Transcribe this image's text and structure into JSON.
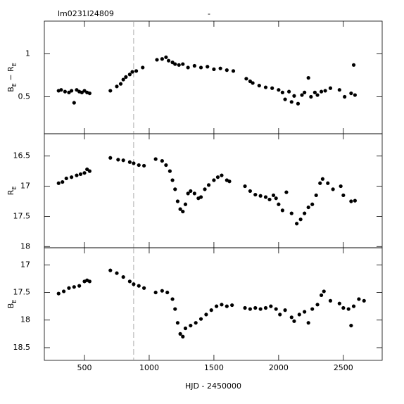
{
  "chart_data": [
    {
      "type": "scatter",
      "title": "lm0231l24809",
      "title_center": "-",
      "ylabel": [
        {
          "text": "B"
        },
        {
          "text": "E",
          "sub": true
        },
        {
          "text": " − R"
        },
        {
          "text": "E",
          "sub": true
        }
      ],
      "xlim": [
        190,
        2800
      ],
      "xticks": [
        500,
        1000,
        1500,
        2000,
        2500
      ],
      "ylim": [
        0.07,
        1.38
      ],
      "yticks": [
        0.5,
        1
      ],
      "inverted": false,
      "reference_x": 880,
      "color": "#000000",
      "x": [
        300,
        320,
        350,
        380,
        400,
        420,
        440,
        460,
        480,
        500,
        520,
        540,
        700,
        750,
        780,
        800,
        820,
        850,
        870,
        900,
        950,
        1060,
        1100,
        1130,
        1150,
        1180,
        1200,
        1230,
        1260,
        1300,
        1350,
        1400,
        1450,
        1500,
        1550,
        1600,
        1650,
        1750,
        1780,
        1800,
        1850,
        1900,
        1950,
        2000,
        2030,
        2050,
        2080,
        2100,
        2120,
        2150,
        2180,
        2200,
        2230,
        2250,
        2280,
        2300,
        2330,
        2360,
        2400,
        2470,
        2510,
        2560,
        2580,
        2590
      ],
      "values": [
        0.57,
        0.58,
        0.56,
        0.55,
        0.57,
        0.43,
        0.58,
        0.56,
        0.55,
        0.57,
        0.55,
        0.54,
        0.57,
        0.62,
        0.65,
        0.7,
        0.73,
        0.76,
        0.79,
        0.8,
        0.84,
        0.93,
        0.94,
        0.96,
        0.92,
        0.9,
        0.88,
        0.87,
        0.88,
        0.84,
        0.86,
        0.84,
        0.85,
        0.82,
        0.83,
        0.81,
        0.8,
        0.71,
        0.68,
        0.66,
        0.63,
        0.61,
        0.6,
        0.58,
        0.55,
        0.47,
        0.56,
        0.44,
        0.51,
        0.42,
        0.52,
        0.55,
        0.72,
        0.5,
        0.55,
        0.52,
        0.56,
        0.57,
        0.6,
        0.58,
        0.5,
        0.54,
        0.87,
        0.52
      ]
    },
    {
      "type": "scatter",
      "ylabel": [
        {
          "text": "R"
        },
        {
          "text": "E",
          "sub": true
        }
      ],
      "xlim": [
        190,
        2800
      ],
      "xticks": [
        500,
        1000,
        1500,
        2000,
        2500
      ],
      "ylim": [
        16.13,
        18.02
      ],
      "yticks": [
        16.5,
        17,
        17.5,
        18
      ],
      "inverted": true,
      "reference_x": 880,
      "color": "#000000",
      "x": [
        300,
        330,
        360,
        400,
        440,
        470,
        500,
        520,
        540,
        700,
        760,
        800,
        850,
        880,
        920,
        960,
        1050,
        1100,
        1130,
        1160,
        1180,
        1200,
        1220,
        1240,
        1260,
        1280,
        1300,
        1320,
        1350,
        1380,
        1400,
        1430,
        1460,
        1500,
        1530,
        1560,
        1600,
        1620,
        1740,
        1780,
        1820,
        1860,
        1900,
        1930,
        1960,
        1980,
        2000,
        2030,
        2060,
        2100,
        2140,
        2170,
        2200,
        2230,
        2260,
        2290,
        2320,
        2340,
        2380,
        2420,
        2480,
        2500,
        2560,
        2590
      ],
      "values": [
        16.95,
        16.93,
        16.87,
        16.85,
        16.82,
        16.8,
        16.78,
        16.72,
        16.75,
        16.53,
        16.56,
        16.57,
        16.6,
        16.62,
        16.65,
        16.66,
        16.55,
        16.58,
        16.65,
        16.75,
        16.9,
        17.05,
        17.25,
        17.38,
        17.42,
        17.3,
        17.12,
        17.08,
        17.12,
        17.2,
        17.18,
        17.05,
        16.98,
        16.9,
        16.85,
        16.82,
        16.9,
        16.92,
        17.0,
        17.08,
        17.14,
        17.16,
        17.18,
        17.22,
        17.15,
        17.2,
        17.3,
        17.4,
        17.1,
        17.45,
        17.62,
        17.55,
        17.45,
        17.35,
        17.3,
        17.15,
        16.95,
        16.88,
        16.95,
        17.05,
        17.0,
        17.15,
        17.25,
        17.24
      ]
    },
    {
      "type": "scatter",
      "ylabel": [
        {
          "text": "B"
        },
        {
          "text": "E",
          "sub": true
        }
      ],
      "xlabel": "HJD - 2450000",
      "xlim": [
        190,
        2800
      ],
      "xticks": [
        500,
        1000,
        1500,
        2000,
        2500
      ],
      "ylim": [
        16.69,
        18.73
      ],
      "yticks": [
        17,
        17.5,
        18,
        18.5
      ],
      "inverted": true,
      "reference_x": 880,
      "color": "#000000",
      "x": [
        300,
        340,
        380,
        420,
        460,
        500,
        520,
        540,
        700,
        750,
        800,
        850,
        880,
        920,
        960,
        1050,
        1100,
        1140,
        1180,
        1200,
        1220,
        1240,
        1260,
        1280,
        1320,
        1360,
        1400,
        1440,
        1480,
        1520,
        1560,
        1600,
        1640,
        1740,
        1780,
        1820,
        1860,
        1900,
        1940,
        1980,
        2010,
        2050,
        2100,
        2120,
        2160,
        2200,
        2230,
        2260,
        2300,
        2330,
        2350,
        2400,
        2470,
        2500,
        2540,
        2560,
        2580,
        2620,
        2660
      ],
      "values": [
        17.52,
        17.48,
        17.42,
        17.4,
        17.38,
        17.3,
        17.28,
        17.3,
        17.1,
        17.15,
        17.22,
        17.3,
        17.35,
        17.38,
        17.42,
        17.5,
        17.47,
        17.5,
        17.62,
        17.8,
        18.05,
        18.25,
        18.3,
        18.15,
        18.1,
        18.05,
        17.98,
        17.9,
        17.82,
        17.75,
        17.72,
        17.75,
        17.73,
        17.78,
        17.8,
        17.78,
        17.8,
        17.78,
        17.75,
        17.8,
        17.9,
        17.82,
        17.95,
        18.02,
        17.9,
        17.85,
        18.05,
        17.8,
        17.72,
        17.55,
        17.48,
        17.65,
        17.7,
        17.78,
        17.8,
        18.1,
        17.75,
        17.62,
        17.65
      ]
    }
  ]
}
